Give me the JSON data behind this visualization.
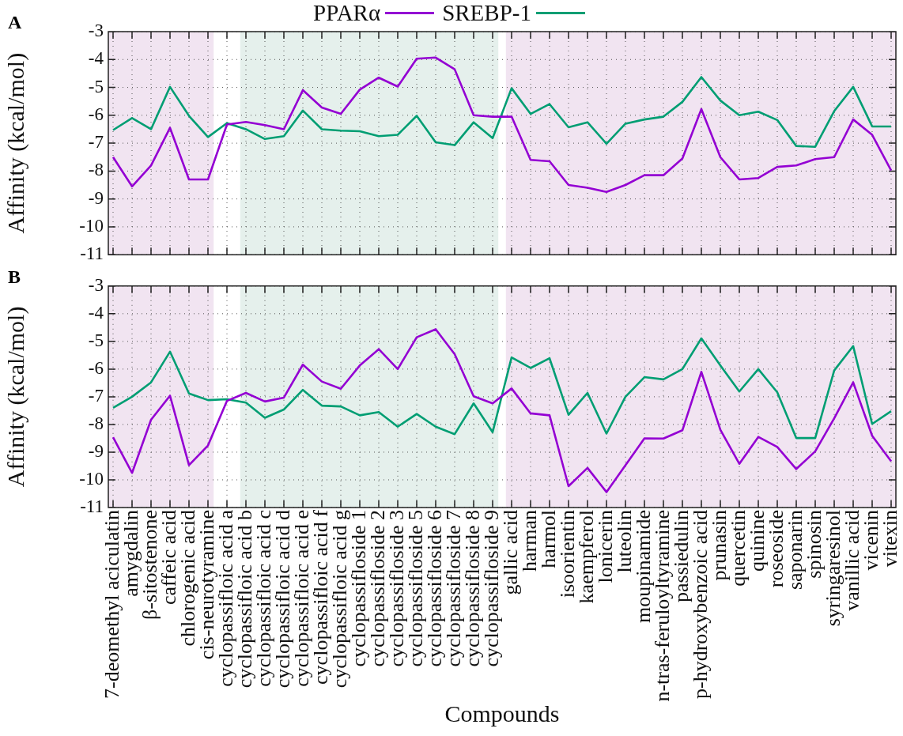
{
  "chart_data": [
    {
      "type": "line",
      "title": "A",
      "ylabel": "Affinity (kcal/mol)",
      "tick_labels": "y",
      "legend": "top",
      "grid": true,
      "categories": [
        "7-deomethyl aciculatin",
        "amygdalin",
        "β-sitostenone",
        "caffeic acid",
        "chlorogenic acid",
        "cis-neurotyramine",
        "cyclopassifloic acid a",
        "cyclopassifloic acid b",
        "cyclopassifloic acid c",
        "cyclopassifloic acid d",
        "cyclopassifloic acid e",
        "cyclopassifloic acid f",
        "cyclopassifloic acid g",
        "cyclopassifloside 1",
        "cyclopassifloside 2",
        "cyclopassifloside 3",
        "cyclopassifloside 5",
        "cyclopassifloside 6",
        "cyclopassifloside 7",
        "cyclopassifloside 8",
        "cyclopassifloside 9",
        "gallic acid",
        "harman",
        "harmol",
        "isoorientin",
        "kaempferol",
        "lonicerin",
        "luteolin",
        "moupinamide",
        "n-tras-feruloyltyramine",
        "passiedulin",
        "p-hydroxybenzoic acid",
        "prunasin",
        "quercetin",
        "quinine",
        "roseoside",
        "saponarin",
        "spinosin",
        "syringaresinol",
        "vanillic acid",
        "vicenin",
        "vitexin"
      ],
      "series": [
        {
          "name": "PPARα",
          "color": "#9400d3",
          "values": [
            -7.5,
            -8.55,
            -7.8,
            -6.45,
            -8.3,
            -8.3,
            -6.33,
            -6.24,
            -6.35,
            -6.5,
            -5.1,
            -5.72,
            -5.95,
            -5.08,
            -4.65,
            -4.97,
            -3.97,
            -3.93,
            -4.35,
            -6.0,
            -6.05,
            -6.05,
            -7.6,
            -7.65,
            -8.5,
            -8.6,
            -8.75,
            -8.5,
            -8.15,
            -8.15,
            -7.55,
            -5.78,
            -7.5,
            -8.3,
            -8.25,
            -7.85,
            -7.8,
            -7.57,
            -7.5,
            -6.15,
            -6.7,
            -7.98
          ]
        },
        {
          "name": "SREBP-1",
          "color": "#009e73",
          "values": [
            -6.53,
            -6.1,
            -6.5,
            -4.98,
            -6.02,
            -6.78,
            -6.28,
            -6.5,
            -6.85,
            -6.75,
            -5.83,
            -6.5,
            -6.55,
            -6.57,
            -6.75,
            -6.7,
            -6.02,
            -6.97,
            -7.07,
            -6.25,
            -6.82,
            -5.03,
            -5.95,
            -5.6,
            -6.43,
            -6.25,
            -7.02,
            -6.3,
            -6.15,
            -6.05,
            -5.52,
            -4.63,
            -5.47,
            -6.0,
            -5.87,
            -6.17,
            -7.1,
            -7.13,
            -5.85,
            -4.98,
            -6.4,
            -6.4
          ]
        }
      ],
      "ylim": [
        -11,
        -3
      ],
      "yticks": [
        -11,
        -10,
        -9,
        -8,
        -7,
        -6,
        -5,
        -4,
        -3
      ],
      "bands": [
        {
          "axis": "x",
          "from": "7-deomethyl aciculatin",
          "to": "cis-neurotyramine",
          "color": "#f1e4f1"
        },
        {
          "axis": "x",
          "from": "cyclopassifloic acid b",
          "to": "cyclopassifloside 9",
          "color": "#e5f0ec"
        },
        {
          "axis": "x",
          "from": "gallic acid",
          "to": "vitexin",
          "color": "#f1e4f1"
        }
      ]
    },
    {
      "type": "line",
      "title": "B",
      "ylabel": "Affinity (kcal/mol)",
      "xlabel": "Compounds",
      "grid": true,
      "categories": [
        "7-deomethyl aciculatin",
        "amygdalin",
        "β-sitostenone",
        "caffeic acid",
        "chlorogenic acid",
        "cis-neurotyramine",
        "cyclopassifloic acid a",
        "cyclopassifloic acid b",
        "cyclopassifloic acid c",
        "cyclopassifloic acid d",
        "cyclopassifloic acid e",
        "cyclopassifloic acid f",
        "cyclopassifloic acid g",
        "cyclopassifloside 1",
        "cyclopassifloside 2",
        "cyclopassifloside 3",
        "cyclopassifloside 5",
        "cyclopassifloside 6",
        "cyclopassifloside 7",
        "cyclopassifloside 8",
        "cyclopassifloside 9",
        "gallic acid",
        "harman",
        "harmol",
        "isoorientin",
        "kaempferol",
        "lonicerin",
        "luteolin",
        "moupinamide",
        "n-tras-feruloyltyramine",
        "passiedulin",
        "p-hydroxybenzoic acid",
        "prunasin",
        "quercetin",
        "quinine",
        "roseoside",
        "saponarin",
        "spinosin",
        "syringaresinol",
        "vanillic acid",
        "vicenin",
        "vitexin"
      ],
      "series": [
        {
          "color": "#9400d3",
          "values": [
            -8.46,
            -9.75,
            -7.83,
            -6.96,
            -9.47,
            -8.76,
            -7.15,
            -6.86,
            -7.17,
            -7.03,
            -5.84,
            -6.45,
            -6.71,
            -5.87,
            -5.28,
            -6.0,
            -4.85,
            -4.56,
            -5.46,
            -6.98,
            -7.24,
            -6.7,
            -7.6,
            -7.67,
            -10.23,
            -9.57,
            -10.44,
            -9.47,
            -8.5,
            -8.51,
            -8.21,
            -6.1,
            -8.19,
            -9.42,
            -8.45,
            -8.81,
            -9.61,
            -8.97,
            -7.78,
            -6.48,
            -8.41,
            -9.33
          ]
        },
        {
          "color": "#009e73",
          "values": [
            -7.4,
            -7.0,
            -6.48,
            -5.37,
            -6.88,
            -7.12,
            -7.09,
            -7.21,
            -7.76,
            -7.46,
            -6.75,
            -7.32,
            -7.35,
            -7.67,
            -7.55,
            -8.08,
            -7.62,
            -8.08,
            -8.35,
            -7.24,
            -8.28,
            -5.58,
            -5.96,
            -5.61,
            -7.65,
            -6.86,
            -8.33,
            -7.0,
            -6.29,
            -6.37,
            -6.0,
            -4.89,
            -5.87,
            -6.81,
            -6.0,
            -6.84,
            -8.49,
            -8.49,
            -6.05,
            -5.17,
            -7.98,
            -7.52
          ]
        }
      ],
      "ylim": [
        -11,
        -3
      ],
      "yticks": [
        -11,
        -10,
        -9,
        -8,
        -7,
        -6,
        -5,
        -4,
        -3
      ],
      "bands": [
        {
          "axis": "x",
          "from": "7-deomethyl aciculatin",
          "to": "cis-neurotyramine",
          "color": "#f1e4f1"
        },
        {
          "axis": "x",
          "from": "cyclopassifloic acid b",
          "to": "cyclopassifloside 9",
          "color": "#e5f0ec"
        },
        {
          "axis": "x",
          "from": "gallic acid",
          "to": "vitexin",
          "color": "#f1e4f1"
        }
      ]
    }
  ]
}
